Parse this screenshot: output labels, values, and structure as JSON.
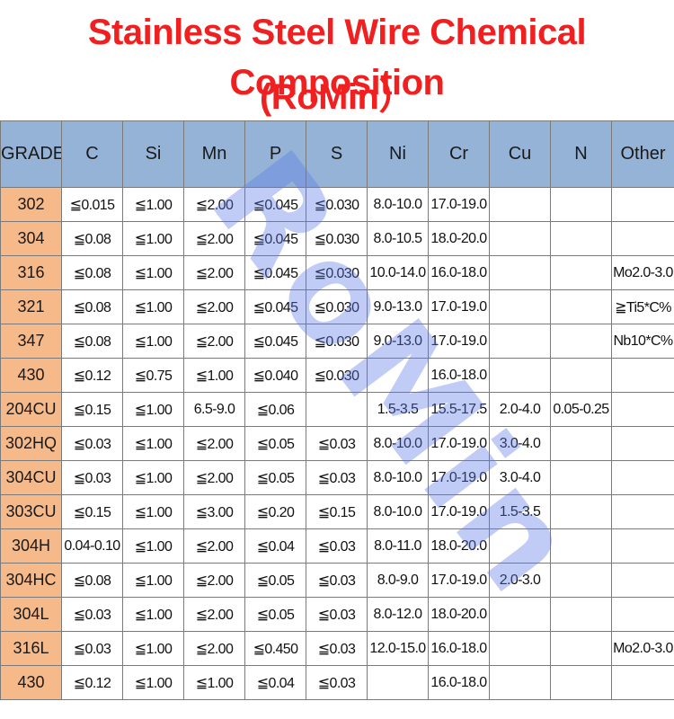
{
  "title_line1": "Stainless Steel Wire Chemical Composition",
  "title_line2": "(RoMin）",
  "watermark": "RoMin",
  "colors": {
    "title": "#f02020",
    "header_bg": "#95b3d7",
    "grade_bg": "#f6b98a",
    "watermark": "#5a78e6"
  },
  "table": {
    "headers": [
      "GRADE",
      "C",
      "Si",
      "Mn",
      "P",
      "S",
      "Ni",
      "Cr",
      "Cu",
      "N",
      "Other"
    ],
    "rows": [
      [
        "302",
        "≦0.015",
        "≦1.00",
        "≦2.00",
        "≦0.045",
        "≦0.030",
        "8.0-10.0",
        "17.0-19.0",
        "",
        "",
        ""
      ],
      [
        "304",
        "≦0.08",
        "≦1.00",
        "≦2.00",
        "≦0.045",
        "≦0.030",
        "8.0-10.5",
        "18.0-20.0",
        "",
        "",
        ""
      ],
      [
        "316",
        "≦0.08",
        "≦1.00",
        "≦2.00",
        "≦0.045",
        "≦0.030",
        "10.0-14.0",
        "16.0-18.0",
        "",
        "",
        "Mo2.0-3.0"
      ],
      [
        "321",
        "≦0.08",
        "≦1.00",
        "≦2.00",
        "≦0.045",
        "≦0.030",
        "9.0-13.0",
        "17.0-19.0",
        "",
        "",
        "≧Ti5*C%"
      ],
      [
        "347",
        "≦0.08",
        "≦1.00",
        "≦2.00",
        "≦0.045",
        "≦0.030",
        "9.0-13.0",
        "17.0-19.0",
        "",
        "",
        "Nb10*C%"
      ],
      [
        "430",
        "≦0.12",
        "≦0.75",
        "≦1.00",
        "≦0.040",
        "≦0.030",
        "",
        "16.0-18.0",
        "",
        "",
        ""
      ],
      [
        "204CU",
        "≦0.15",
        "≦1.00",
        "6.5-9.0",
        "≦0.06",
        "",
        "1.5-3.5",
        "15.5-17.5",
        "2.0-4.0",
        "0.05-0.25",
        ""
      ],
      [
        "302HQ",
        "≦0.03",
        "≦1.00",
        "≦2.00",
        "≦0.05",
        "≦0.03",
        "8.0-10.0",
        "17.0-19.0",
        "3.0-4.0",
        "",
        ""
      ],
      [
        "304CU",
        "≦0.03",
        "≦1.00",
        "≦2.00",
        "≦0.05",
        "≦0.03",
        "8.0-10.0",
        "17.0-19.0",
        "3.0-4.0",
        "",
        ""
      ],
      [
        "303CU",
        "≦0.15",
        "≦1.00",
        "≦3.00",
        "≦0.20",
        "≦0.15",
        "8.0-10.0",
        "17.0-19.0",
        "1.5-3.5",
        "",
        ""
      ],
      [
        "304H",
        "0.04-0.10",
        "≦1.00",
        "≦2.00",
        "≦0.04",
        "≦0.03",
        "8.0-11.0",
        "18.0-20.0",
        "",
        "",
        ""
      ],
      [
        "304HC",
        "≦0.08",
        "≦1.00",
        "≦2.00",
        "≦0.05",
        "≦0.03",
        "8.0-9.0",
        "17.0-19.0",
        "2.0-3.0",
        "",
        ""
      ],
      [
        "304L",
        "≦0.03",
        "≦1.00",
        "≦2.00",
        "≦0.05",
        "≦0.03",
        "8.0-12.0",
        "18.0-20.0",
        "",
        "",
        ""
      ],
      [
        "316L",
        "≦0.03",
        "≦1.00",
        "≦2.00",
        "≦0.450",
        "≦0.03",
        "12.0-15.0",
        "16.0-18.0",
        "",
        "",
        "Mo2.0-3.0"
      ],
      [
        "430",
        "≦0.12",
        "≦1.00",
        "≦1.00",
        "≦0.04",
        "≦0.03",
        "",
        "16.0-18.0",
        "",
        "",
        ""
      ]
    ]
  }
}
